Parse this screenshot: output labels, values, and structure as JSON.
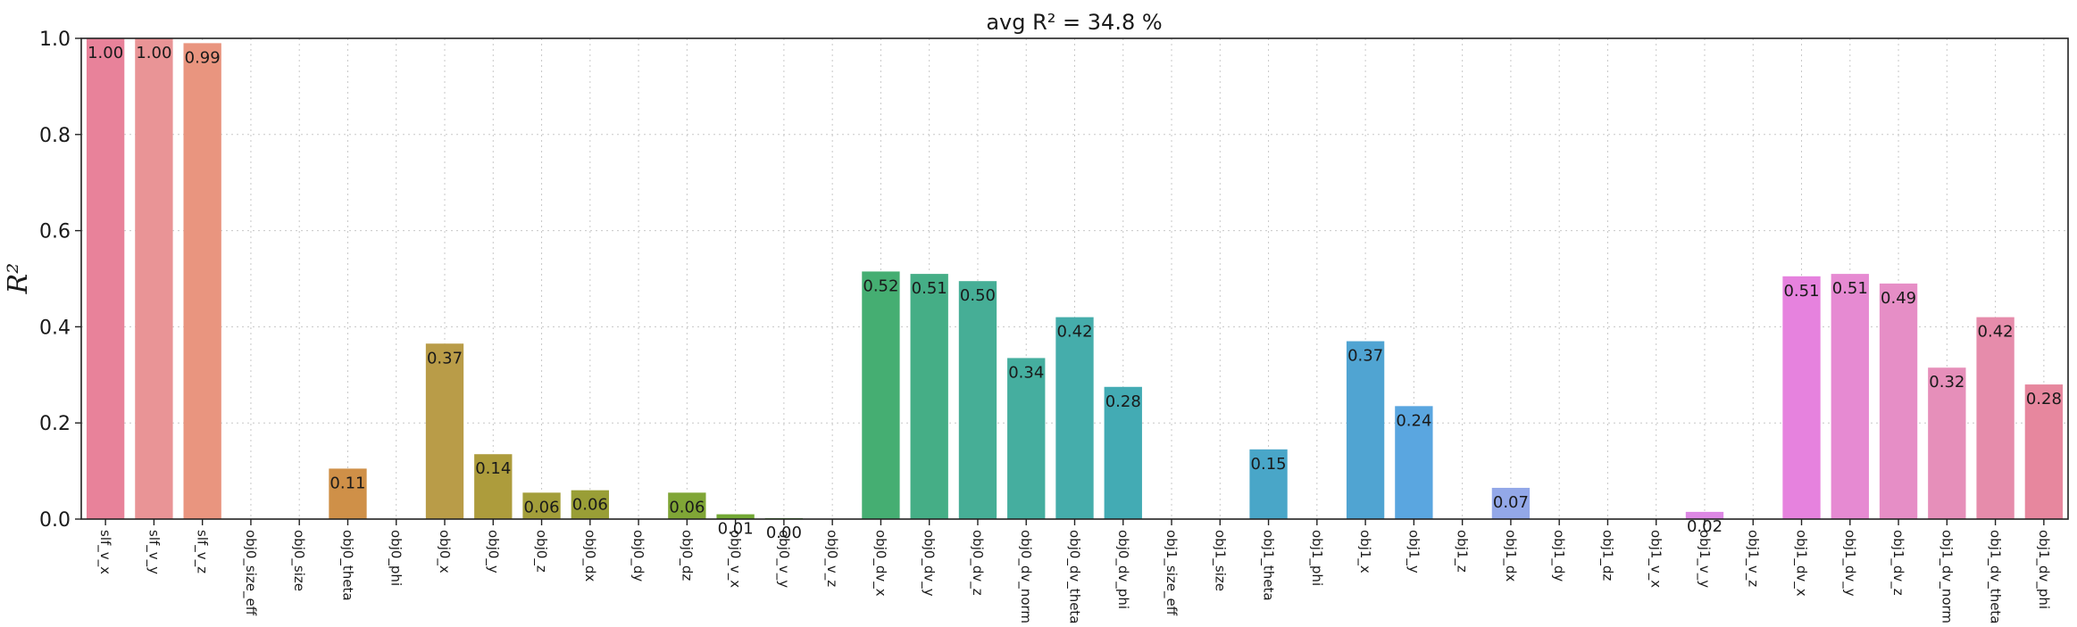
{
  "chart_data": {
    "type": "bar",
    "title": "avg R² = 34.8 %",
    "ylabel": "R²",
    "xlabel": "",
    "ylim": [
      0,
      1.0
    ],
    "yticks": [
      0.0,
      0.2,
      0.4,
      0.6,
      0.8,
      1.0
    ],
    "ytick_labels": [
      "0.0",
      "0.2",
      "0.4",
      "0.6",
      "0.8",
      "1.0"
    ],
    "grid": true,
    "categories": [
      "slf_v_x",
      "slf_v_y",
      "slf_v_z",
      "obj0_size_eff",
      "obj0_size",
      "obj0_theta",
      "obj0_phi",
      "obj0_x",
      "obj0_y",
      "obj0_z",
      "obj0_dx",
      "obj0_dy",
      "obj0_dz",
      "obj0_v_x",
      "obj0_v_y",
      "obj0_v_z",
      "obj0_dv_x",
      "obj0_dv_y",
      "obj0_dv_z",
      "obj0_dv_norm",
      "obj0_dv_theta",
      "obj0_dv_phi",
      "obj1_size_eff",
      "obj1_size",
      "obj1_theta",
      "obj1_phi",
      "obj1_x",
      "obj1_y",
      "obj1_z",
      "obj1_dx",
      "obj1_dy",
      "obj1_dz",
      "obj1_v_x",
      "obj1_v_y",
      "obj1_v_z",
      "obj1_dv_x",
      "obj1_dv_y",
      "obj1_dv_z",
      "obj1_dv_norm",
      "obj1_dv_theta",
      "obj1_dv_phi"
    ],
    "values": [
      1.0,
      1.0,
      0.99,
      0.0,
      0.0,
      0.105,
      0.0,
      0.365,
      0.135,
      0.055,
      0.06,
      0.0,
      0.055,
      0.01,
      0.002,
      0.0,
      0.515,
      0.51,
      0.495,
      0.335,
      0.42,
      0.275,
      0.0,
      0.0,
      0.145,
      0.0,
      0.37,
      0.235,
      0.0,
      0.065,
      0.0,
      0.0,
      0.0,
      0.015,
      0.0,
      0.505,
      0.51,
      0.49,
      0.315,
      0.42,
      0.28
    ],
    "data_labels": [
      "1.00",
      "1.00",
      "0.99",
      "",
      "",
      "0.11",
      "",
      "0.37",
      "0.14",
      "0.06",
      "0.06",
      "",
      "0.06",
      "0.01",
      "0.00",
      "",
      "0.52",
      "0.51",
      "0.50",
      "0.34",
      "0.42",
      "0.28",
      "",
      "",
      "0.15",
      "",
      "0.37",
      "0.24",
      "",
      "0.07",
      "",
      "",
      "",
      "0.02",
      "",
      "0.51",
      "0.51",
      "0.49",
      "0.32",
      "0.42",
      "0.28"
    ],
    "colors": [
      "#e8829a",
      "#e99496",
      "#e9957f",
      "#e0885d",
      "#d88c4c",
      "#cf9048",
      "#c29a3f",
      "#b99c48",
      "#ad9c3c",
      "#a39e3a",
      "#999e36",
      "#8ea238",
      "#80a636",
      "#73a935",
      "#5bae3b",
      "#4aae54",
      "#45ae72",
      "#45ae86",
      "#46ae96",
      "#45ae9f",
      "#45adab",
      "#43abb4",
      "#45aabb",
      "#47a8c1",
      "#49a6c8",
      "#4ba4cd",
      "#50a4d2",
      "#5aa6e0",
      "#7aa8e6",
      "#93a8e8",
      "#aba3ea",
      "#c29ee8",
      "#d293e7",
      "#dd88e4",
      "#e580e3",
      "#e682de",
      "#e68ad2",
      "#e68ec6",
      "#e68fba",
      "#e68cab",
      "#e7879e"
    ]
  }
}
